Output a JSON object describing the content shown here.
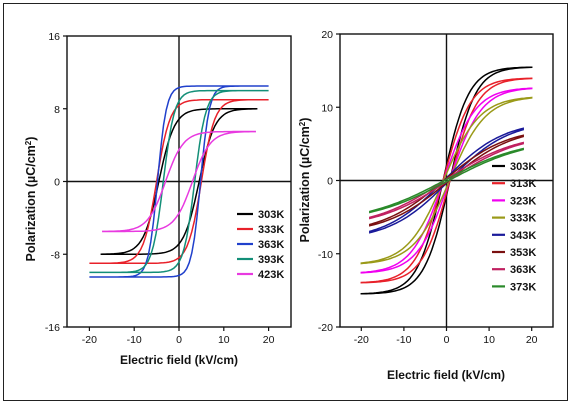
{
  "chart_data": [
    {
      "type": "line",
      "xlabel": "Electric field (kV/cm)",
      "ylabel_main": "Polarization (",
      "ylabel_mu": "µ",
      "ylabel_unit": "C/cm",
      "ylabel_sup": "2",
      "ylabel_close": ")",
      "xlim": [
        -25,
        25
      ],
      "ylim": [
        -16,
        16
      ],
      "xticks": [
        -20,
        -10,
        0,
        10,
        20
      ],
      "yticks": [
        -16,
        -8,
        0,
        8,
        16
      ],
      "legend_position": "lower-right",
      "series": [
        {
          "name": "303K",
          "color": "#000000",
          "Emax": 17.5,
          "Ec": 4.5,
          "Ps": 8.0,
          "Pr": 4.5,
          "w": 3.5
        },
        {
          "name": "333K",
          "color": "#e8212a",
          "Emax": 20.0,
          "Ec": 5.0,
          "Ps": 9.0,
          "Pr": 5.0,
          "w": 3.0
        },
        {
          "name": "363K",
          "color": "#2040cc",
          "Emax": 20.0,
          "Ec": 4.8,
          "Ps": 10.5,
          "Pr": 7.0,
          "w": 2.0
        },
        {
          "name": "393K",
          "color": "#138f78",
          "Emax": 20.0,
          "Ec": 3.5,
          "Ps": 10.0,
          "Pr": 6.5,
          "w": 2.5
        },
        {
          "name": "423K",
          "color": "#e83ae0",
          "Emax": 17.0,
          "Ec": 3.0,
          "Ps": 5.5,
          "Pr": 2.0,
          "w": 4.0
        }
      ]
    },
    {
      "type": "line",
      "xlabel": "Electric field (kV/cm)",
      "ylabel_main": "Polarization (",
      "ylabel_mu": "µ",
      "ylabel_unit": "C/cm",
      "ylabel_sup": "2",
      "ylabel_close": ")",
      "xlim": [
        -25,
        25
      ],
      "ylim": [
        -20,
        20
      ],
      "xticks": [
        -20,
        -10,
        0,
        10,
        20
      ],
      "yticks": [
        -20,
        -10,
        0,
        10,
        20
      ],
      "legend_position": "lower-right",
      "series": [
        {
          "name": "303K",
          "color": "#000000",
          "Emax": 20.0,
          "Ec": 0.8,
          "Ps": 15.5,
          "Pr": 1.2,
          "w": 6.0
        },
        {
          "name": "313K",
          "color": "#e8212a",
          "Emax": 20.0,
          "Ec": 0.8,
          "Ps": 14.0,
          "Pr": 1.0,
          "w": 6.5
        },
        {
          "name": "323K",
          "color": "#f000f0",
          "Emax": 20.0,
          "Ec": 0.7,
          "Ps": 12.7,
          "Pr": 0.9,
          "w": 7.5
        },
        {
          "name": "333K",
          "color": "#9a9a18",
          "Emax": 20.0,
          "Ec": 0.7,
          "Ps": 11.5,
          "Pr": 0.8,
          "w": 8.5
        },
        {
          "name": "343K",
          "color": "#1a1a9a",
          "Emax": 18.0,
          "Ec": 0.6,
          "Ps": 8.2,
          "Pr": 0.6,
          "w": 14.0
        },
        {
          "name": "353K",
          "color": "#7a1010",
          "Emax": 18.0,
          "Ec": 0.6,
          "Ps": 7.3,
          "Pr": 0.5,
          "w": 15.0
        },
        {
          "name": "363K",
          "color": "#c02060",
          "Emax": 18.0,
          "Ec": 0.5,
          "Ps": 6.5,
          "Pr": 0.5,
          "w": 17.0
        },
        {
          "name": "373K",
          "color": "#2a8a2a",
          "Emax": 18.0,
          "Ec": 0.5,
          "Ps": 5.8,
          "Pr": 0.4,
          "w": 19.0
        }
      ]
    }
  ]
}
